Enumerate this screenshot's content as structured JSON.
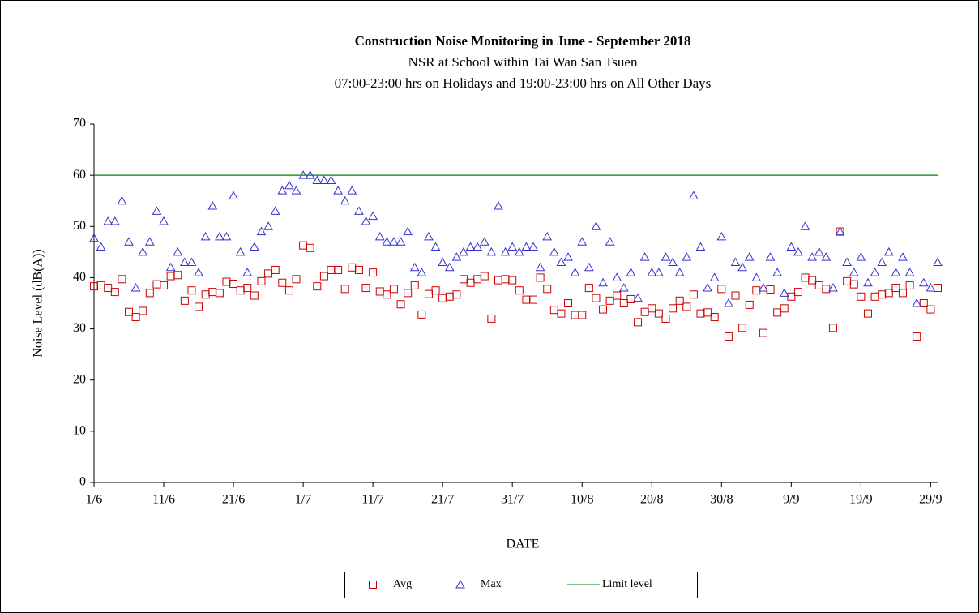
{
  "chart_data": {
    "type": "scatter",
    "title": "Construction  Noise Monitoring  in June - September 2018",
    "subtitle": [
      "NSR at School within Tai Wan San Tsuen",
      "07:00-23:00 hrs on Holidays and 19:00-23:00 hrs on All Other Days"
    ],
    "x_label": "DATE",
    "y_label": "Noise Level (dB(A))",
    "categories": [
      "1/6",
      null,
      null,
      null,
      null,
      null,
      null,
      null,
      null,
      null,
      "11/6",
      null,
      null,
      null,
      null,
      null,
      null,
      null,
      null,
      null,
      "21/6",
      null,
      null,
      null,
      null,
      null,
      null,
      null,
      null,
      null,
      "1/7",
      null,
      null,
      null,
      null,
      null,
      null,
      null,
      null,
      null,
      "11/7",
      null,
      null,
      null,
      null,
      null,
      null,
      null,
      null,
      null,
      "21/7",
      null,
      null,
      null,
      null,
      null,
      null,
      null,
      null,
      null,
      "31/7",
      null,
      null,
      null,
      null,
      null,
      null,
      null,
      null,
      null,
      "10/8",
      null,
      null,
      null,
      null,
      null,
      null,
      null,
      null,
      null,
      "20/8",
      null,
      null,
      null,
      null,
      null,
      null,
      null,
      null,
      null,
      "30/8",
      null,
      null,
      null,
      null,
      null,
      null,
      null,
      null,
      null,
      "9/9",
      null,
      null,
      null,
      null,
      null,
      null,
      null,
      null,
      null,
      "19/9",
      null,
      null,
      null,
      null,
      null,
      null,
      null,
      null,
      null,
      "29/9",
      null
    ],
    "series": [
      {
        "name": "Avg",
        "marker": "square",
        "color": "#cc0000",
        "values": [
          38.3,
          38.5,
          38,
          37.2,
          39.7,
          33.3,
          32.3,
          33.5,
          37,
          38.7,
          38.5,
          40.3,
          40.5,
          35.5,
          37.5,
          34.3,
          36.7,
          37.2,
          37,
          39.2,
          38.8,
          37.5,
          38,
          36.5,
          39.3,
          40.8,
          41.5,
          39,
          37.5,
          39.7,
          46.3,
          45.8,
          38.3,
          40.3,
          41.5,
          41.5,
          37.8,
          42,
          41.5,
          38,
          41,
          37.3,
          36.7,
          37.8,
          34.8,
          37,
          38.5,
          32.8,
          36.8,
          37.5,
          36,
          36.3,
          36.7,
          39.7,
          39,
          39.7,
          40.3,
          32,
          39.5,
          39.7,
          39.5,
          37.5,
          35.7,
          35.7,
          40,
          37.8,
          33.7,
          33,
          35,
          32.7,
          32.7,
          38,
          36,
          33.8,
          35.5,
          36.5,
          35,
          35.8,
          31.3,
          33.3,
          34,
          33,
          32,
          34,
          35.5,
          34.3,
          36.7,
          33,
          33.2,
          32.3,
          37.8,
          28.5,
          36.5,
          30.2,
          34.7,
          37.5,
          29.2,
          37.7,
          33.2,
          34,
          36.3,
          37.2,
          40,
          39.5,
          38.5,
          37.8,
          30.2,
          49,
          39.3,
          38.7,
          36.3,
          33,
          36.3,
          36.7,
          37,
          38,
          37,
          38.5,
          28.5,
          35,
          33.8,
          38
        ]
      },
      {
        "name": "Max",
        "marker": "triangle",
        "color": "#3333cc",
        "values": [
          47.7,
          46,
          51,
          51,
          55,
          47,
          38,
          45,
          47,
          53,
          51,
          42,
          45,
          43,
          43,
          41,
          48,
          54,
          48,
          48,
          56,
          45,
          41,
          46,
          49,
          50,
          53,
          57,
          58,
          57,
          60,
          60,
          59,
          59,
          59,
          57,
          55,
          57,
          53,
          51,
          52,
          48,
          47,
          47,
          47,
          49,
          42,
          41,
          48,
          46,
          43,
          42,
          44,
          45,
          46,
          46,
          47,
          45,
          54,
          45,
          46,
          45,
          46,
          46,
          42,
          48,
          45,
          43,
          44,
          41,
          47,
          42,
          50,
          39,
          47,
          40,
          38,
          41,
          36,
          44,
          41,
          41,
          44,
          43,
          41,
          44,
          56,
          46,
          38,
          40,
          48,
          35,
          43,
          42,
          44,
          40,
          38,
          44,
          41,
          37,
          46,
          45,
          50,
          44,
          45,
          44,
          38,
          49,
          43,
          41,
          44,
          39,
          41,
          43,
          45,
          41,
          44,
          41,
          35,
          39,
          38,
          43
        ]
      }
    ],
    "lines": [
      {
        "name": "Limit level",
        "color": "#008000",
        "value": 60
      }
    ],
    "ylim": [
      0,
      70
    ],
    "yticks": [
      0,
      10,
      20,
      30,
      40,
      50,
      60,
      70
    ]
  }
}
